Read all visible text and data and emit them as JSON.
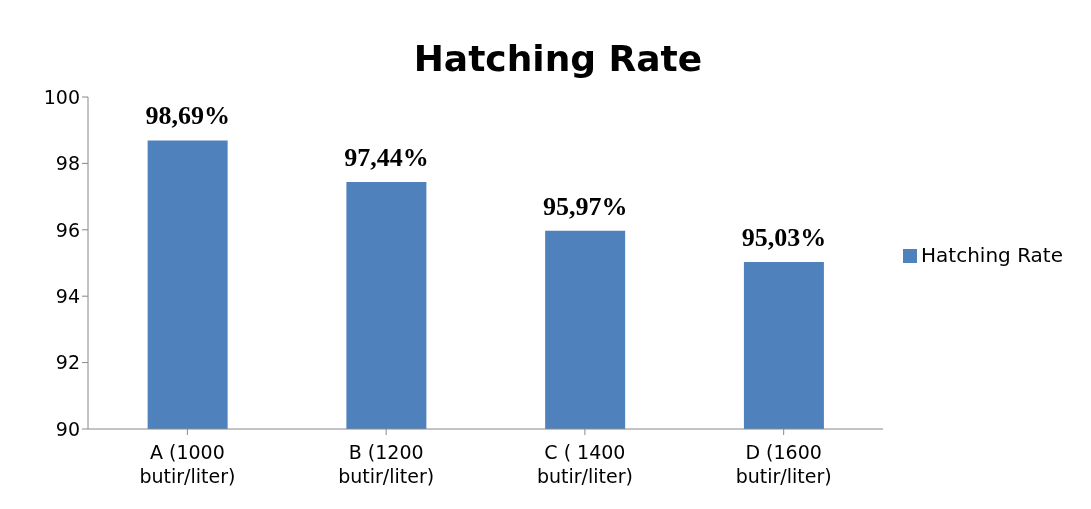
{
  "chart_data": {
    "type": "bar",
    "title": "Hatching Rate",
    "categories": [
      "A (1000 butir/liter)",
      "B (1200 butir/liter)",
      "C ( 1400 butir/liter)",
      "D (1600 butir/liter)"
    ],
    "series": [
      {
        "name": "Hatching Rate",
        "color": "#4f81bd",
        "values": [
          98.69,
          97.44,
          95.97,
          95.03
        ],
        "value_labels": [
          "98,69%",
          "97,44%",
          "95,97%",
          "95,03%"
        ]
      }
    ],
    "ylim": [
      90,
      100
    ],
    "yticks": [
      90,
      92,
      94,
      96,
      98,
      100
    ],
    "grid": false,
    "legend": "right"
  }
}
